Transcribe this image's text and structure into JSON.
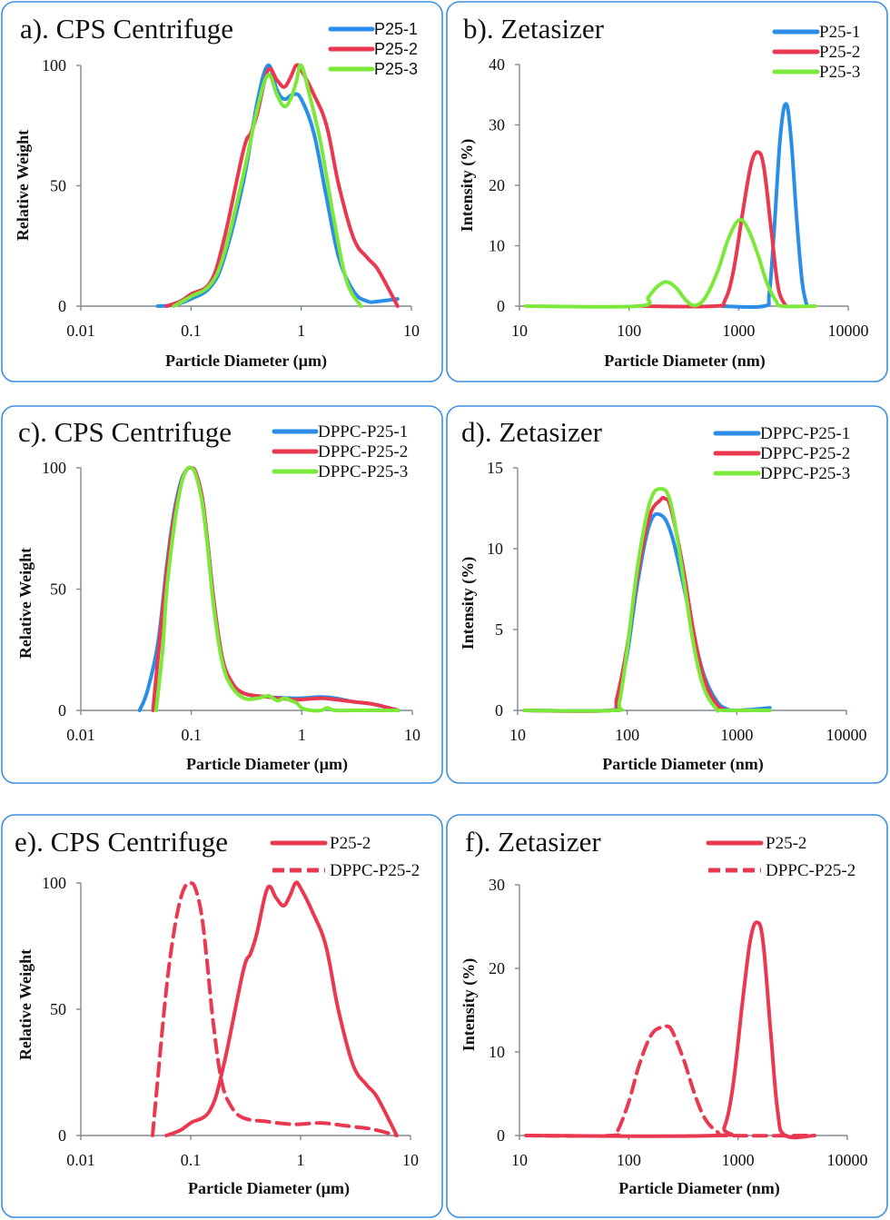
{
  "colors": {
    "blue": "#2a8ee8",
    "red": "#ea3850",
    "green": "#7be83a",
    "panel_border": "#3c8fe0"
  },
  "chart_data": [
    {
      "id": "a",
      "type": "line",
      "title": "a). CPS Centrifuge",
      "xlabel": "Particle Diameter (µm)",
      "ylabel": "Relative Weight",
      "xscale": "log",
      "xlim": [
        0.01,
        10
      ],
      "ylim": [
        0,
        100
      ],
      "xticks": [
        0.01,
        0.1,
        1,
        10
      ],
      "xtick_labels": [
        "0.01",
        "0.1",
        "1",
        "10"
      ],
      "yticks": [
        0,
        50,
        100
      ],
      "ytick_labels": [
        "0",
        "50",
        "100"
      ],
      "legend": "top-right",
      "legend_font": "sans",
      "series": [
        {
          "name": "P25-1",
          "color": "blue",
          "dash": false,
          "x": [
            0.05,
            0.07,
            0.1,
            0.15,
            0.2,
            0.3,
            0.4,
            0.5,
            0.6,
            0.7,
            0.85,
            1.0,
            1.3,
            1.7,
            2.2,
            3.0,
            4.0,
            5.0,
            7.5
          ],
          "y": [
            0,
            0.5,
            3,
            8,
            20,
            52,
            85,
            100,
            90,
            86,
            88,
            86,
            72,
            45,
            20,
            6,
            2,
            2,
            3
          ]
        },
        {
          "name": "P25-2",
          "color": "red",
          "dash": false,
          "x": [
            0.06,
            0.08,
            0.1,
            0.15,
            0.2,
            0.3,
            0.35,
            0.4,
            0.5,
            0.6,
            0.7,
            0.8,
            0.9,
            1.0,
            1.3,
            1.7,
            2.2,
            3.0,
            4.0,
            5.0,
            7.5
          ],
          "y": [
            0,
            2,
            5,
            10,
            28,
            65,
            72,
            80,
            98,
            94,
            91,
            95,
            100,
            98,
            88,
            75,
            50,
            28,
            20,
            15,
            0
          ]
        },
        {
          "name": "P25-3",
          "color": "green",
          "dash": false,
          "x": [
            0.07,
            0.1,
            0.15,
            0.2,
            0.3,
            0.4,
            0.5,
            0.6,
            0.7,
            0.8,
            0.9,
            1.0,
            1.2,
            1.5,
            2.0,
            2.6,
            3.5
          ],
          "y": [
            0,
            4,
            9,
            22,
            55,
            82,
            96,
            88,
            83,
            86,
            93,
            100,
            87,
            68,
            35,
            10,
            0
          ]
        }
      ]
    },
    {
      "id": "b",
      "type": "line",
      "title": "b). Zetasizer",
      "xlabel": "Particle Diameter (nm)",
      "ylabel": "Intensity (%)",
      "xscale": "log",
      "xlim": [
        10,
        10000
      ],
      "ylim": [
        0,
        40
      ],
      "xticks": [
        10,
        100,
        1000,
        10000
      ],
      "xtick_labels": [
        "10",
        "100",
        "1000",
        "10000"
      ],
      "yticks": [
        0,
        10,
        20,
        30,
        40
      ],
      "ytick_labels": [
        "0",
        "10",
        "20",
        "30",
        "40"
      ],
      "legend": "top-right",
      "legend_font": "serif",
      "series": [
        {
          "name": "P25-1",
          "color": "blue",
          "dash": false,
          "x": [
            700,
            1700,
            1900,
            2100,
            2400,
            2700,
            3000,
            3400,
            3800,
            4200
          ],
          "y": [
            0,
            0,
            2,
            12,
            28,
            33.5,
            28,
            14,
            4,
            0
          ]
        },
        {
          "name": "P25-2",
          "color": "red",
          "dash": false,
          "x": [
            130,
            600,
            750,
            900,
            1100,
            1300,
            1500,
            1700,
            2000,
            2300,
            2700
          ],
          "y": [
            0,
            0,
            1,
            6,
            16,
            23.5,
            25.5,
            23,
            12,
            3,
            0
          ]
        },
        {
          "name": "P25-3",
          "color": "green",
          "dash": false,
          "x": [
            11.5,
            120,
            150,
            180,
            220,
            270,
            330,
            400,
            500,
            650,
            800,
            1000,
            1200,
            1500,
            1800,
            2200,
            2500,
            5000
          ],
          "y": [
            0,
            0,
            1.5,
            3.2,
            4.0,
            3.0,
            1.0,
            0.1,
            1.5,
            6,
            11,
            14.2,
            13,
            8.5,
            4,
            0.8,
            0,
            0
          ]
        }
      ]
    },
    {
      "id": "c",
      "type": "line",
      "title": "c). CPS Centrifuge",
      "xlabel": "Particle Diameter (µm)",
      "ylabel": "Relative Weight",
      "xscale": "log",
      "xlim": [
        0.01,
        10
      ],
      "ylim": [
        0,
        100
      ],
      "xticks": [
        0.01,
        0.1,
        1,
        10
      ],
      "xtick_labels": [
        "0.01",
        "0.1",
        "1",
        "10"
      ],
      "yticks": [
        0,
        50,
        100
      ],
      "ytick_labels": [
        "0",
        "50",
        "100"
      ],
      "legend": "top-right",
      "legend_font": "serif",
      "series": [
        {
          "name": "DPPC-P25-1",
          "color": "blue",
          "dash": false,
          "x": [
            0.034,
            0.04,
            0.05,
            0.06,
            0.07,
            0.08,
            0.09,
            0.1,
            0.11,
            0.125,
            0.14,
            0.16,
            0.19,
            0.23,
            0.3,
            0.5,
            0.8,
            1.0,
            1.5,
            2.0,
            3.0,
            4.5,
            7.5
          ],
          "y": [
            0,
            8,
            28,
            60,
            82,
            94,
            99,
            100,
            98,
            88,
            70,
            45,
            22,
            12,
            7,
            5.5,
            5,
            5,
            5.5,
            5,
            3.5,
            2.5,
            0
          ]
        },
        {
          "name": "DPPC-P25-2",
          "color": "red",
          "dash": false,
          "x": [
            0.045,
            0.05,
            0.06,
            0.07,
            0.08,
            0.09,
            0.1,
            0.11,
            0.125,
            0.14,
            0.16,
            0.19,
            0.23,
            0.3,
            0.5,
            0.8,
            1.0,
            1.5,
            2.0,
            3.0,
            4.5,
            7.5
          ],
          "y": [
            0,
            22,
            58,
            80,
            93,
            99,
            100,
            98,
            88,
            70,
            45,
            22,
            12,
            7,
            5.5,
            4.5,
            4.5,
            5,
            4.5,
            3.5,
            2.5,
            0
          ]
        },
        {
          "name": "DPPC-P25-3",
          "color": "green",
          "dash": false,
          "x": [
            0.048,
            0.055,
            0.06,
            0.07,
            0.08,
            0.09,
            0.1,
            0.11,
            0.125,
            0.14,
            0.16,
            0.19,
            0.23,
            0.3,
            0.4,
            0.5,
            0.6,
            0.7,
            0.8,
            0.9,
            1.0,
            1.2,
            1.5,
            1.7,
            2.0,
            3.0,
            7.5
          ],
          "y": [
            0,
            25,
            50,
            76,
            92,
            99,
            100,
            97,
            86,
            68,
            42,
            20,
            10,
            5,
            5,
            6,
            4,
            5,
            4,
            3,
            1,
            0,
            0,
            1,
            0,
            0,
            0
          ]
        }
      ]
    },
    {
      "id": "d",
      "type": "line",
      "title": "d). Zetasizer",
      "xlabel": "Particle Diameter (nm)",
      "ylabel": "Intensity (%)",
      "xscale": "log",
      "xlim": [
        10,
        10000
      ],
      "ylim": [
        0,
        15
      ],
      "xticks": [
        10,
        100,
        1000,
        10000
      ],
      "xtick_labels": [
        "10",
        "100",
        "1000",
        "10000"
      ],
      "yticks": [
        0,
        5,
        10,
        15
      ],
      "ytick_labels": [
        "0",
        "5",
        "10",
        "15"
      ],
      "legend": "top-right",
      "legend_font": "serif",
      "series": [
        {
          "name": "DPPC-P25-1",
          "color": "blue",
          "dash": false,
          "x": [
            11.5,
            70,
            80,
            100,
            125,
            160,
            200,
            250,
            320,
            400,
            500,
            650,
            800,
            1000,
            2000
          ],
          "y": [
            0,
            0,
            0.4,
            3.5,
            8,
            11.5,
            12.1,
            11,
            8,
            4.8,
            2.2,
            0.6,
            0.1,
            0,
            0.15
          ]
        },
        {
          "name": "DPPC-P25-2",
          "color": "red",
          "dash": false,
          "x": [
            11.5,
            70,
            80,
            100,
            125,
            160,
            200,
            220,
            250,
            320,
            400,
            500,
            650,
            800
          ],
          "y": [
            0,
            0,
            0.7,
            4,
            8.5,
            12,
            13.0,
            13.1,
            12.5,
            9,
            5,
            2,
            0.4,
            0
          ]
        },
        {
          "name": "DPPC-P25-3",
          "color": "green",
          "dash": false,
          "x": [
            11.5,
            75,
            85,
            100,
            125,
            160,
            200,
            250,
            320,
            400,
            500,
            650,
            750,
            2000
          ],
          "y": [
            0,
            0,
            0.5,
            3.8,
            9,
            12.8,
            13.7,
            12.8,
            8.5,
            4.2,
            1.4,
            0.1,
            0,
            0
          ]
        }
      ]
    },
    {
      "id": "e",
      "type": "line",
      "title": "e). CPS Centrifuge",
      "xlabel": "Particle Diameter (µm)",
      "ylabel": "Relative Weight",
      "xscale": "log",
      "xlim": [
        0.01,
        10
      ],
      "ylim": [
        0,
        100
      ],
      "xticks": [
        0.01,
        0.1,
        1,
        10
      ],
      "xtick_labels": [
        "0.01",
        "0.1",
        "1",
        "10"
      ],
      "yticks": [
        0,
        50,
        100
      ],
      "ytick_labels": [
        "0",
        "50",
        "100"
      ],
      "legend": "top-right",
      "legend_font": "serif",
      "series": [
        {
          "name": "P25-2",
          "color": "red",
          "dash": false,
          "x": [
            0.06,
            0.08,
            0.1,
            0.15,
            0.2,
            0.3,
            0.35,
            0.4,
            0.5,
            0.6,
            0.7,
            0.8,
            0.9,
            1.0,
            1.3,
            1.7,
            2.2,
            3.0,
            4.0,
            5.0,
            7.5
          ],
          "y": [
            0,
            2,
            5,
            10,
            28,
            65,
            72,
            80,
            98,
            94,
            91,
            95,
            100,
            98,
            88,
            75,
            50,
            28,
            20,
            15,
            0
          ]
        },
        {
          "name": "DPPC-P25-2",
          "color": "red",
          "dash": true,
          "x": [
            0.045,
            0.05,
            0.06,
            0.07,
            0.08,
            0.09,
            0.1,
            0.11,
            0.125,
            0.14,
            0.16,
            0.19,
            0.23,
            0.3,
            0.5,
            0.8,
            1.0,
            1.5,
            2.0,
            3.0,
            4.5,
            7.5
          ],
          "y": [
            0,
            22,
            58,
            80,
            93,
            99,
            100,
            98,
            88,
            70,
            45,
            22,
            12,
            7,
            5.5,
            4.5,
            4.5,
            5,
            4.5,
            3.5,
            2.5,
            0
          ]
        }
      ]
    },
    {
      "id": "f",
      "type": "line",
      "title": "f). Zetasizer",
      "xlabel": "Particle Diameter (nm)",
      "ylabel": "Intensity (%)",
      "xscale": "log",
      "xlim": [
        10,
        10000
      ],
      "ylim": [
        0,
        30
      ],
      "xticks": [
        10,
        100,
        1000,
        10000
      ],
      "xtick_labels": [
        "10",
        "100",
        "1000",
        "10000"
      ],
      "yticks": [
        0,
        10,
        20,
        30
      ],
      "ytick_labels": [
        "0",
        "10",
        "20",
        "30"
      ],
      "legend": "top-right",
      "legend_font": "serif",
      "series": [
        {
          "name": "P25-2",
          "color": "red",
          "dash": false,
          "x": [
            11.5,
            600,
            750,
            900,
            1100,
            1300,
            1500,
            1700,
            2000,
            2300,
            2700,
            5000
          ],
          "y": [
            0,
            0,
            1,
            6,
            16,
            23.5,
            25.5,
            23,
            12,
            3,
            0,
            0
          ]
        },
        {
          "name": "DPPC-P25-2",
          "color": "red",
          "dash": true,
          "x": [
            11.5,
            70,
            80,
            100,
            125,
            160,
            200,
            220,
            250,
            320,
            400,
            500,
            650,
            800,
            5000
          ],
          "y": [
            0,
            0,
            0.7,
            4,
            8.5,
            12,
            13.0,
            13.1,
            12.5,
            9,
            5,
            2,
            0.4,
            0,
            0
          ]
        }
      ]
    }
  ]
}
